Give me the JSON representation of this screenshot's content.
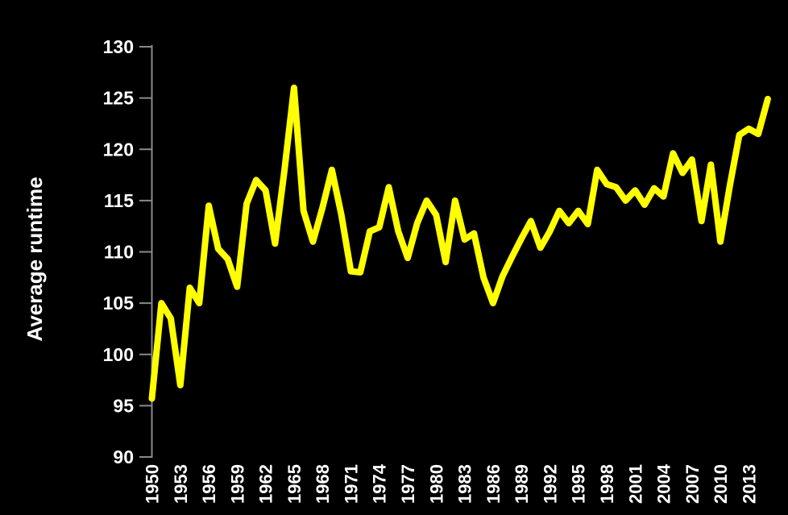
{
  "chart_data": {
    "type": "line",
    "title": "",
    "ylabel": "Average runtime",
    "xlabel": "",
    "legend_position": "none",
    "grid": "off",
    "background_color": "#000000",
    "line_color": "#ffff00",
    "axis_color": "#8a8a8a",
    "text_color": "#ffffff",
    "ylim": [
      90,
      130
    ],
    "xlim": [
      1950,
      2015
    ],
    "y_ticks": [
      90,
      95,
      100,
      105,
      110,
      115,
      120,
      125,
      130
    ],
    "x_tick_labels": [
      "1950",
      "1953",
      "1956",
      "1959",
      "1962",
      "1965",
      "1968",
      "1971",
      "1974",
      "1977",
      "1980",
      "1983",
      "1986",
      "1989",
      "1992",
      "1995",
      "1998",
      "2001",
      "2004",
      "2007",
      "2010",
      "2013"
    ],
    "x": [
      1950,
      1951,
      1952,
      1953,
      1954,
      1955,
      1956,
      1957,
      1958,
      1959,
      1960,
      1961,
      1962,
      1963,
      1964,
      1965,
      1966,
      1967,
      1968,
      1969,
      1970,
      1971,
      1972,
      1973,
      1974,
      1975,
      1976,
      1977,
      1978,
      1979,
      1980,
      1981,
      1982,
      1983,
      1984,
      1985,
      1986,
      1987,
      1988,
      1989,
      1990,
      1991,
      1992,
      1993,
      1994,
      1995,
      1996,
      1997,
      1998,
      1999,
      2000,
      2001,
      2002,
      2003,
      2004,
      2005,
      2006,
      2007,
      2008,
      2009,
      2010,
      2011,
      2012,
      2013,
      2014,
      2015
    ],
    "values": [
      95.7,
      105,
      103.5,
      97,
      106.5,
      105,
      114.5,
      110.3,
      109.3,
      106.6,
      114.7,
      117,
      116,
      110.8,
      118,
      126,
      114,
      111,
      114.3,
      118,
      113.6,
      108.1,
      108,
      112,
      112.4,
      116.3,
      112,
      109.4,
      112.8,
      115,
      113.6,
      109,
      115,
      111.2,
      111.8,
      107.5,
      105,
      107.6,
      109.5,
      111.3,
      113,
      110.4,
      112,
      114,
      112.8,
      114,
      112.7,
      118,
      116.6,
      116.3,
      115,
      116,
      114.6,
      116.2,
      115.4,
      119.6,
      117.7,
      119,
      113,
      118.5,
      111,
      116.5,
      121.4,
      122,
      121.5,
      124.9
    ]
  }
}
